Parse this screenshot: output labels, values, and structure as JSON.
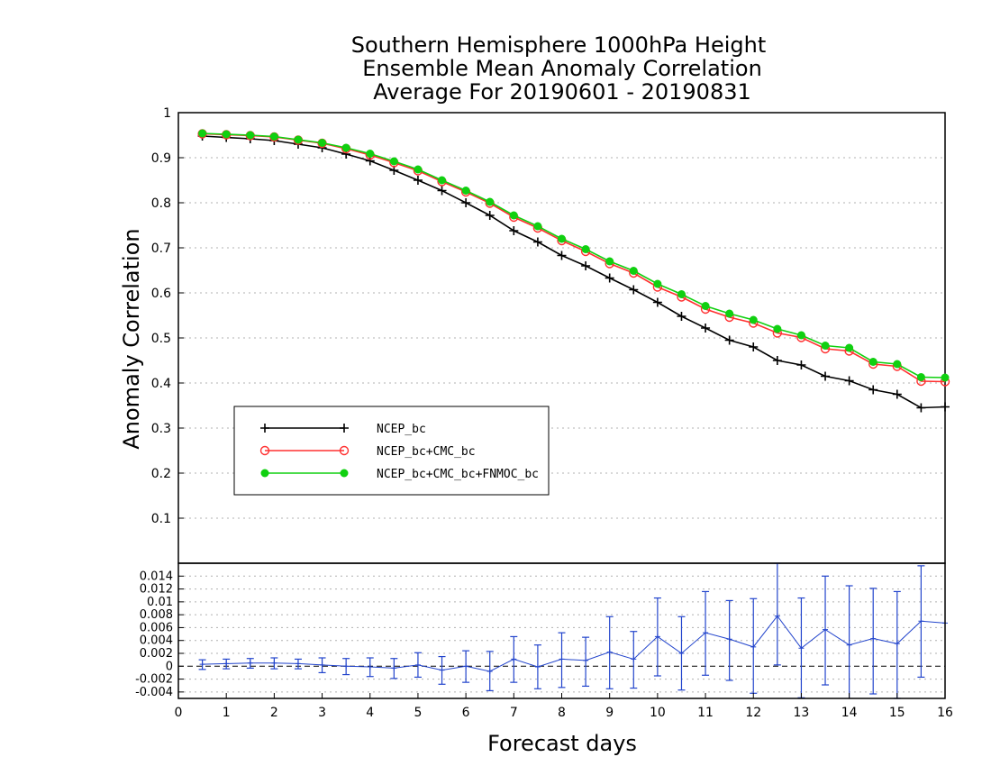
{
  "chart_data": {
    "type": "line",
    "title_lines": [
      "Southern Hemisphere 1000hPa Height",
      "Ensemble Mean Anomaly Correlation",
      "Average For 20190601 - 20190831"
    ],
    "xlabel": "Forecast days",
    "ylabel": "Anomaly Correlation",
    "xlim": [
      0,
      16
    ],
    "ylim": [
      0,
      1
    ],
    "x_ticks": [
      "0",
      "1",
      "2",
      "3",
      "4",
      "5",
      "6",
      "7",
      "8",
      "9",
      "10",
      "11",
      "12",
      "13",
      "14",
      "15",
      "16"
    ],
    "y_ticks": [
      "0.1",
      "0.2",
      "0.3",
      "0.4",
      "0.5",
      "0.6",
      "0.7",
      "0.8",
      "0.9",
      "1"
    ],
    "grid": true,
    "legend_position": "middle-left",
    "x": [
      0.5,
      1,
      1.5,
      2,
      2.5,
      3,
      3.5,
      4,
      4.5,
      5,
      5.5,
      6,
      6.5,
      7,
      7.5,
      8,
      8.5,
      9,
      9.5,
      10,
      10.5,
      11,
      11.5,
      12,
      12.5,
      13,
      13.5,
      14,
      14.5,
      15,
      15.5,
      16
    ],
    "series": [
      {
        "name": "NCEP_bc",
        "color": "#000000",
        "marker": "plus",
        "values": [
          0.948,
          0.945,
          0.942,
          0.938,
          0.93,
          0.922,
          0.908,
          0.893,
          0.872,
          0.85,
          0.827,
          0.8,
          0.772,
          0.738,
          0.713,
          0.683,
          0.66,
          0.633,
          0.607,
          0.579,
          0.548,
          0.522,
          0.495,
          0.48,
          0.45,
          0.44,
          0.415,
          0.405,
          0.385,
          0.375,
          0.345,
          0.347
        ]
      },
      {
        "name": "NCEP_bc+CMC_bc",
        "color": "#ff3030",
        "marker": "open-circle",
        "values": [
          0.953,
          0.951,
          0.949,
          0.946,
          0.939,
          0.932,
          0.92,
          0.906,
          0.889,
          0.871,
          0.847,
          0.824,
          0.799,
          0.768,
          0.744,
          0.716,
          0.692,
          0.665,
          0.644,
          0.613,
          0.591,
          0.564,
          0.546,
          0.533,
          0.511,
          0.501,
          0.476,
          0.471,
          0.442,
          0.437,
          0.404,
          0.403
        ]
      },
      {
        "name": "NCEP_bc+CMC_bc+FNMOC_bc",
        "color": "#10d010",
        "marker": "filled-circle",
        "values": [
          0.954,
          0.952,
          0.95,
          0.947,
          0.94,
          0.933,
          0.922,
          0.909,
          0.892,
          0.874,
          0.85,
          0.827,
          0.802,
          0.772,
          0.748,
          0.72,
          0.697,
          0.67,
          0.649,
          0.62,
          0.597,
          0.571,
          0.554,
          0.54,
          0.52,
          0.506,
          0.483,
          0.478,
          0.447,
          0.442,
          0.413,
          0.412
        ]
      }
    ],
    "difference_panel": {
      "ylim": [
        -0.005,
        0.016
      ],
      "y_ticks": [
        "-0.004",
        "-0.002",
        "0",
        "0.002",
        "0.004",
        "0.006",
        "0.008",
        "0.01",
        "0.012",
        "0.014"
      ],
      "color": "#2244cc",
      "values": [
        0.0003,
        0.0004,
        0.0005,
        0.0005,
        0.0004,
        0.0002,
        0.0,
        -0.0001,
        -0.0003,
        0.0002,
        -0.0006,
        0.0,
        -0.0008,
        0.0011,
        -0.0001,
        0.0011,
        0.0009,
        0.0022,
        0.0011,
        0.0046,
        0.002,
        0.0052,
        0.0042,
        0.003,
        0.0078,
        0.0028,
        0.0057,
        0.0033,
        0.0043,
        0.0035,
        0.007,
        0.0067
      ],
      "error_low": [
        -0.0005,
        -0.0004,
        -0.0003,
        -0.0004,
        -0.0004,
        -0.001,
        -0.0013,
        -0.0016,
        -0.0019,
        -0.0017,
        -0.0028,
        -0.0025,
        -0.0038,
        -0.0025,
        -0.0035,
        -0.0033,
        -0.0031,
        -0.0035,
        -0.0034,
        -0.0015,
        -0.0037,
        -0.0014,
        -0.0022,
        -0.0042,
        0.0002,
        -0.0049,
        -0.0029,
        -0.0055,
        -0.0043,
        -0.005,
        -0.0017,
        null
      ],
      "error_high": [
        0.001,
        0.0011,
        0.0012,
        0.0013,
        0.0011,
        0.0013,
        0.0012,
        0.0013,
        0.0012,
        0.0021,
        0.0015,
        0.0024,
        0.0023,
        0.0046,
        0.0033,
        0.0052,
        0.0045,
        0.0077,
        0.0054,
        0.0106,
        0.0077,
        0.0116,
        0.0102,
        0.0105,
        0.016,
        0.0106,
        0.014,
        0.0125,
        0.0121,
        0.0116,
        0.0156,
        null
      ]
    }
  }
}
